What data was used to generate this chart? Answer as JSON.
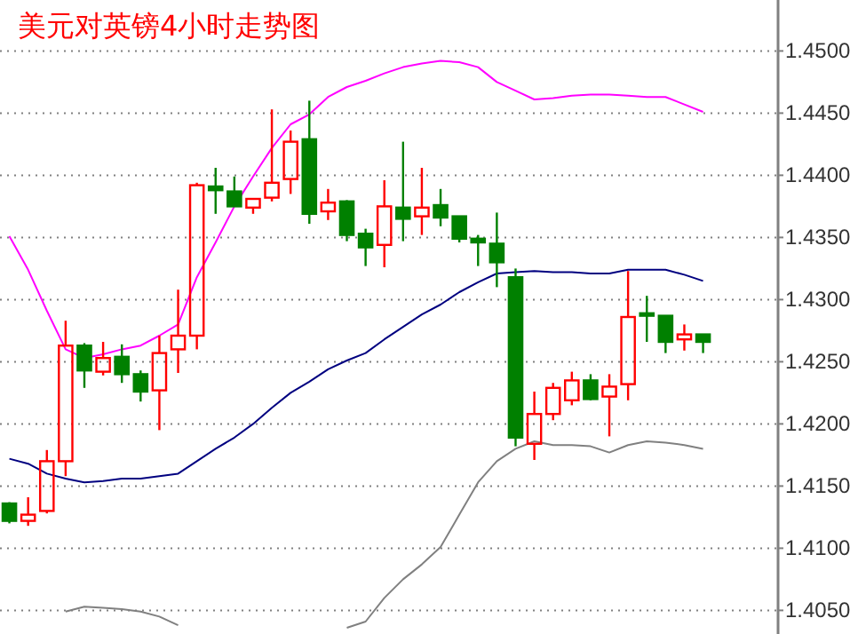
{
  "chart_data": {
    "type": "candlestick",
    "title": "美元对英镑4小时走势图",
    "categories": [
      null,
      null,
      null,
      null,
      null,
      null,
      null,
      null,
      null,
      null,
      null,
      null,
      null,
      null,
      null,
      null,
      null,
      null,
      null,
      null,
      null,
      null,
      null,
      null,
      null,
      null,
      null,
      null,
      null,
      null,
      null,
      null,
      null,
      null,
      null,
      null,
      null,
      null
    ],
    "ohlc": [
      [
        1.4136,
        1.4137,
        1.412,
        1.4122
      ],
      [
        1.4122,
        1.4141,
        1.4118,
        1.4127
      ],
      [
        1.413,
        1.4179,
        1.4128,
        1.417
      ],
      [
        1.417,
        1.4283,
        1.4158,
        1.4263
      ],
      [
        1.4263,
        1.4265,
        1.4229,
        1.4243
      ],
      [
        1.4242,
        1.4266,
        1.4239,
        1.4253
      ],
      [
        1.4254,
        1.4264,
        1.4233,
        1.424
      ],
      [
        1.424,
        1.4243,
        1.4218,
        1.4226
      ],
      [
        1.4227,
        1.4271,
        1.4195,
        1.4257
      ],
      [
        1.426,
        1.4308,
        1.4241,
        1.4271
      ],
      [
        1.4271,
        1.4394,
        1.426,
        1.4392
      ],
      [
        1.4391,
        1.4406,
        1.4369,
        1.4388
      ],
      [
        1.4387,
        1.4399,
        1.4375,
        1.4375
      ],
      [
        1.4374,
        1.4381,
        1.4369,
        1.4381
      ],
      [
        1.4382,
        1.4453,
        1.4379,
        1.4394
      ],
      [
        1.4397,
        1.4436,
        1.4385,
        1.4427
      ],
      [
        1.4429,
        1.446,
        1.4361,
        1.4369
      ],
      [
        1.4371,
        1.4389,
        1.4364,
        1.4378
      ],
      [
        1.4379,
        1.438,
        1.4347,
        1.4352
      ],
      [
        1.4353,
        1.4357,
        1.4327,
        1.4342
      ],
      [
        1.4344,
        1.4396,
        1.4326,
        1.4375
      ],
      [
        1.4374,
        1.4427,
        1.4347,
        1.4365
      ],
      [
        1.4367,
        1.4406,
        1.4352,
        1.4374
      ],
      [
        1.4376,
        1.4389,
        1.4359,
        1.4366
      ],
      [
        1.4367,
        1.4367,
        1.4346,
        1.4349
      ],
      [
        1.4349,
        1.4352,
        1.4327,
        1.4346
      ],
      [
        1.4345,
        1.437,
        1.431,
        1.433
      ],
      [
        1.4318,
        1.4325,
        1.4182,
        1.4189
      ],
      [
        1.4184,
        1.4226,
        1.4171,
        1.4208
      ],
      [
        1.4208,
        1.4233,
        1.4203,
        1.4229
      ],
      [
        1.4219,
        1.4242,
        1.4215,
        1.4235
      ],
      [
        1.4235,
        1.424,
        1.4219,
        1.422
      ],
      [
        1.4222,
        1.424,
        1.419,
        1.423
      ],
      [
        1.4232,
        1.4323,
        1.4219,
        1.4286
      ],
      [
        1.4289,
        1.4303,
        1.4266,
        1.4287
      ],
      [
        1.4287,
        1.4287,
        1.4257,
        1.4266
      ],
      [
        1.4268,
        1.428,
        1.4259,
        1.4272
      ],
      [
        1.4272,
        1.4272,
        1.4257,
        1.4266
      ]
    ],
    "series": [
      {
        "type": "line",
        "color": "#ff00ff",
        "values": [
          1.4351,
          1.4324,
          1.4291,
          1.426,
          1.4253,
          1.4256,
          1.426,
          1.4263,
          1.4271,
          1.428,
          1.4318,
          1.4346,
          1.4375,
          1.4399,
          1.4422,
          1.4441,
          1.4449,
          1.4463,
          1.4471,
          1.4476,
          1.4482,
          1.4487,
          1.449,
          1.4492,
          1.4491,
          1.4487,
          1.4475,
          1.4468,
          1.4461,
          1.4462,
          1.4464,
          1.4465,
          1.4465,
          1.4464,
          1.4463,
          1.4463,
          1.4457,
          1.4451
        ]
      },
      {
        "type": "line",
        "color": "#000080",
        "values": [
          1.4172,
          1.4168,
          1.416,
          1.4156,
          1.4153,
          1.4154,
          1.4156,
          1.4156,
          1.4158,
          1.416,
          1.417,
          1.418,
          1.4189,
          1.42,
          1.4213,
          1.4225,
          1.4234,
          1.4244,
          1.4251,
          1.4257,
          1.4268,
          1.4278,
          1.4288,
          1.4296,
          1.4306,
          1.4314,
          1.4321,
          1.4322,
          1.4323,
          1.4322,
          1.4322,
          1.4321,
          1.4321,
          1.4324,
          1.4324,
          1.4324,
          1.432,
          1.4315
        ]
      },
      {
        "type": "line",
        "color": "#808080",
        "values": [
          null,
          null,
          null,
          1.4049,
          1.4053,
          1.4052,
          1.4051,
          1.4049,
          1.4045,
          1.4038,
          null,
          null,
          null,
          null,
          null,
          null,
          null,
          null,
          1.4036,
          1.4041,
          1.406,
          1.4075,
          1.4087,
          1.4101,
          1.4127,
          1.4153,
          1.417,
          1.418,
          1.4186,
          1.4183,
          1.4183,
          1.4182,
          1.4177,
          1.4183,
          1.4186,
          1.4185,
          1.4183,
          1.418
        ]
      }
    ],
    "ylim": [
      1.4031,
      1.4541
    ],
    "yticks": [
      {
        "value": 1.405,
        "label": "1.4050"
      },
      {
        "value": 1.41,
        "label": "1.4100"
      },
      {
        "value": 1.415,
        "label": "1.4150"
      },
      {
        "value": 1.42,
        "label": "1.4200"
      },
      {
        "value": 1.425,
        "label": "1.4250"
      },
      {
        "value": 1.43,
        "label": "1.4300"
      },
      {
        "value": 1.435,
        "label": "1.4350"
      },
      {
        "value": 1.44,
        "label": "1.4400"
      },
      {
        "value": 1.445,
        "label": "1.4450"
      },
      {
        "value": 1.45,
        "label": "1.4500"
      }
    ],
    "grid": "y"
  }
}
